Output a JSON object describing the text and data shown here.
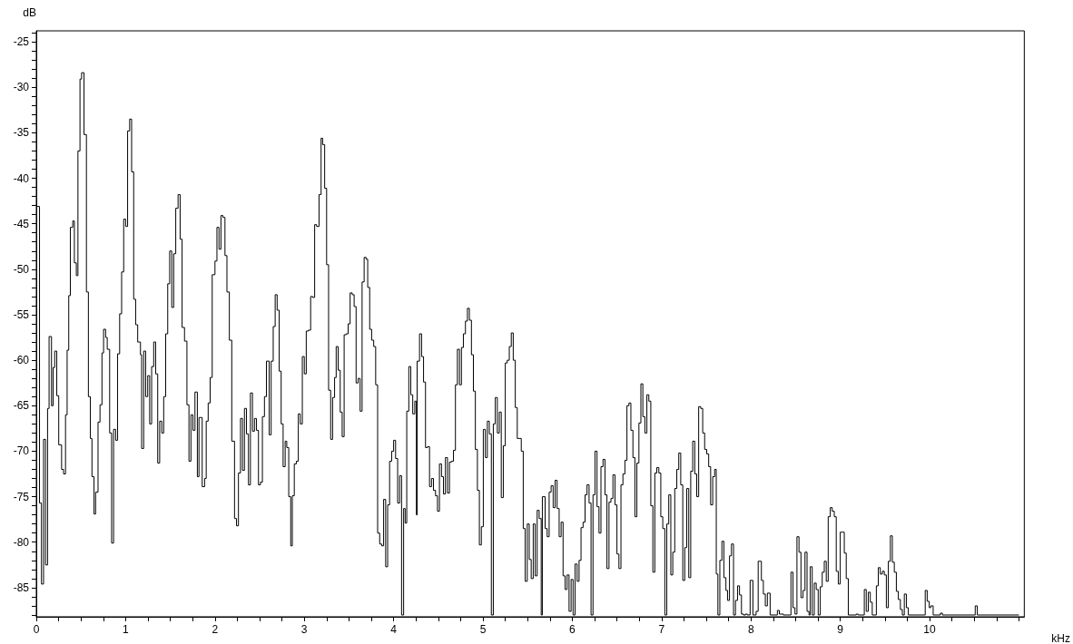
{
  "chart_data": {
    "type": "step",
    "xlabel": "kHz",
    "ylabel": "dB",
    "xlim": [
      0,
      11.06
    ],
    "ylim": [
      -88.2,
      -23.8
    ],
    "xticks": [
      0,
      {
        "value": 0.25,
        "label": null
      },
      {
        "value": 0.5,
        "label": null
      },
      {
        "value": 0.75,
        "label": null
      },
      1,
      {
        "value": 1.25,
        "label": null
      },
      {
        "value": 1.5,
        "label": null
      },
      {
        "value": 1.75,
        "label": null
      },
      2,
      {
        "value": 2.25,
        "label": null
      },
      {
        "value": 2.5,
        "label": null
      },
      {
        "value": 2.75,
        "label": null
      },
      3,
      {
        "value": 3.25,
        "label": null
      },
      {
        "value": 3.5,
        "label": null
      },
      {
        "value": 3.75,
        "label": null
      },
      4,
      {
        "value": 4.25,
        "label": null
      },
      {
        "value": 4.5,
        "label": null
      },
      {
        "value": 4.75,
        "label": null
      },
      5,
      {
        "value": 5.25,
        "label": null
      },
      {
        "value": 5.5,
        "label": null
      },
      {
        "value": 5.75,
        "label": null
      },
      6,
      {
        "value": 6.25,
        "label": null
      },
      {
        "value": 6.5,
        "label": null
      },
      {
        "value": 6.75,
        "label": null
      },
      7,
      {
        "value": 7.25,
        "label": null
      },
      {
        "value": 7.5,
        "label": null
      },
      {
        "value": 7.75,
        "label": null
      },
      8,
      {
        "value": 8.25,
        "label": null
      },
      {
        "value": 8.5,
        "label": null
      },
      {
        "value": 8.75,
        "label": null
      },
      9,
      {
        "value": 9.25,
        "label": null
      },
      {
        "value": 9.5,
        "label": null
      },
      {
        "value": 9.75,
        "label": null
      },
      10,
      {
        "value": 10.25,
        "label": null
      },
      {
        "value": 10.5,
        "label": null
      },
      {
        "value": 10.75,
        "label": null
      },
      {
        "value": 11,
        "label": null
      }
    ],
    "yticks": [
      {
        "value": -88,
        "label": null
      },
      {
        "value": -87,
        "label": null
      },
      {
        "value": -86,
        "label": null
      },
      -85,
      {
        "value": -84,
        "label": null
      },
      {
        "value": -83,
        "label": null
      },
      {
        "value": -82,
        "label": null
      },
      {
        "value": -81,
        "label": null
      },
      -80,
      {
        "value": -79,
        "label": null
      },
      {
        "value": -78,
        "label": null
      },
      {
        "value": -77,
        "label": null
      },
      {
        "value": -76,
        "label": null
      },
      -75,
      {
        "value": -74,
        "label": null
      },
      {
        "value": -73,
        "label": null
      },
      {
        "value": -72,
        "label": null
      },
      {
        "value": -71,
        "label": null
      },
      -70,
      {
        "value": -69,
        "label": null
      },
      {
        "value": -68,
        "label": null
      },
      {
        "value": -67,
        "label": null
      },
      {
        "value": -66,
        "label": null
      },
      -65,
      {
        "value": -64,
        "label": null
      },
      {
        "value": -63,
        "label": null
      },
      {
        "value": -62,
        "label": null
      },
      {
        "value": -61,
        "label": null
      },
      -60,
      {
        "value": -59,
        "label": null
      },
      {
        "value": -58,
        "label": null
      },
      {
        "value": -57,
        "label": null
      },
      {
        "value": -56,
        "label": null
      },
      -55,
      {
        "value": -54,
        "label": null
      },
      {
        "value": -53,
        "label": null
      },
      {
        "value": -52,
        "label": null
      },
      {
        "value": -51,
        "label": null
      },
      -50,
      {
        "value": -49,
        "label": null
      },
      {
        "value": -48,
        "label": null
      },
      {
        "value": -47,
        "label": null
      },
      {
        "value": -46,
        "label": null
      },
      -45,
      {
        "value": -44,
        "label": null
      },
      {
        "value": -43,
        "label": null
      },
      {
        "value": -42,
        "label": null
      },
      {
        "value": -41,
        "label": null
      },
      -40,
      {
        "value": -39,
        "label": null
      },
      {
        "value": -38,
        "label": null
      },
      {
        "value": -37,
        "label": null
      },
      {
        "value": -36,
        "label": null
      },
      -35,
      {
        "value": -34,
        "label": null
      },
      {
        "value": -33,
        "label": null
      },
      {
        "value": -32,
        "label": null
      },
      {
        "value": -31,
        "label": null
      },
      -30,
      {
        "value": -29,
        "label": null
      },
      {
        "value": -28,
        "label": null
      },
      {
        "value": -27,
        "label": null
      },
      {
        "value": -26,
        "label": null
      },
      -25,
      {
        "value": -24,
        "label": null
      }
    ],
    "series": [
      {
        "color": "#000000",
        "x": [
          0,
          0.036,
          0.058,
          0.081,
          0.103,
          0.126,
          0.143,
          0.17,
          0.188,
          0.206,
          0.229,
          0.251,
          0.283,
          0.305,
          0.327,
          0.345,
          0.363,
          0.381,
          0.408,
          0.426,
          0.448,
          0.466,
          0.489,
          0.507,
          0.534,
          0.561,
          0.583,
          0.605,
          0.623,
          0.646,
          0.664,
          0.691,
          0.713,
          0.735,
          0.753,
          0.776,
          0.794,
          0.821,
          0.843,
          0.865,
          0.888,
          0.91,
          0.933,
          0.955,
          0.978,
          1.0,
          1.022,
          1.045,
          1.067,
          1.09,
          1.112,
          1.135,
          1.166,
          1.179,
          1.202,
          1.224,
          1.247,
          1.269,
          1.291,
          1.314,
          1.336,
          1.359,
          1.381,
          1.404,
          1.426,
          1.448,
          1.471,
          1.493,
          1.516,
          1.538,
          1.561,
          1.587,
          1.61,
          1.632,
          1.659,
          1.686,
          1.709,
          1.731,
          1.753,
          1.776,
          1.803,
          1.821,
          1.857,
          1.884,
          1.902,
          1.924,
          1.946,
          1.969,
          2.0,
          2.022,
          2.045,
          2.067,
          2.089,
          2.112,
          2.134,
          2.161,
          2.188,
          2.219,
          2.241,
          2.263,
          2.286,
          2.308,
          2.33,
          2.353,
          2.375,
          2.397,
          2.42,
          2.442,
          2.464,
          2.487,
          2.509,
          2.531,
          2.554,
          2.576,
          2.607,
          2.629,
          2.652,
          2.674,
          2.696,
          2.719,
          2.741,
          2.763,
          2.786,
          2.804,
          2.826,
          2.848,
          2.866,
          2.888,
          2.911,
          2.933,
          2.955,
          2.978,
          3.0,
          3.022,
          3.045,
          3.071,
          3.094,
          3.116,
          3.138,
          3.165,
          3.188,
          3.205,
          3.228,
          3.25,
          3.272,
          3.295,
          3.317,
          3.339,
          3.357,
          3.379,
          3.402,
          3.424,
          3.446,
          3.469,
          3.491,
          3.513,
          3.536,
          3.558,
          3.58,
          3.603,
          3.625,
          3.647,
          3.67,
          3.692,
          3.71,
          3.732,
          3.754,
          3.777,
          3.799,
          3.821,
          3.844,
          3.866,
          3.888,
          3.911,
          3.933,
          3.955,
          3.978,
          4.0,
          4.022,
          4.045,
          4.067,
          4.089,
          4.112,
          4.129,
          4.147,
          4.17,
          4.192,
          4.214,
          4.237,
          4.255,
          4.263,
          4.29,
          4.313,
          4.335,
          4.357,
          4.379,
          4.402,
          4.424,
          4.446,
          4.469,
          4.491,
          4.513,
          4.536,
          4.558,
          4.58,
          4.603,
          4.625,
          4.647,
          4.67,
          4.692,
          4.714,
          4.737,
          4.759,
          4.781,
          4.804,
          4.826,
          4.848,
          4.871,
          4.893,
          4.915,
          4.938,
          4.96,
          4.982,
          5.004,
          5.027,
          5.049,
          5.071,
          5.094,
          5.116,
          5.138,
          5.161,
          5.183,
          5.205,
          5.228,
          5.25,
          5.272,
          5.295,
          5.317,
          5.339,
          5.362,
          5.384,
          5.406,
          5.429,
          5.451,
          5.473,
          5.496,
          5.518,
          5.54,
          5.563,
          5.585,
          5.607,
          5.629,
          5.652,
          5.665,
          5.696,
          5.719,
          5.741,
          5.763,
          5.786,
          5.808,
          5.83,
          5.853,
          5.875,
          5.897,
          5.92,
          5.942,
          5.964,
          5.987,
          6.009,
          6.031,
          6.054,
          6.076,
          6.098,
          6.121,
          6.143,
          6.165,
          6.188,
          6.21,
          6.232,
          6.254,
          6.277,
          6.299,
          6.321,
          6.344,
          6.366,
          6.388,
          6.411,
          6.433,
          6.455,
          6.478,
          6.5,
          6.522,
          6.545,
          6.567,
          6.589,
          6.612,
          6.634,
          6.656,
          6.679,
          6.701,
          6.723,
          6.746,
          6.768,
          6.79,
          6.813,
          6.835,
          6.857,
          6.879,
          6.902,
          6.924,
          6.946,
          6.969,
          6.991,
          7.013,
          7.036,
          7.058,
          7.08,
          7.103,
          7.125,
          7.147,
          7.17,
          7.192,
          7.214,
          7.237,
          7.259,
          7.281,
          7.304,
          7.326,
          7.348,
          7.371,
          7.393,
          7.415,
          7.438,
          7.46,
          7.482,
          7.505,
          7.527,
          7.549,
          7.572,
          7.594,
          7.612,
          7.63,
          7.652,
          7.675,
          7.697,
          7.72,
          7.738,
          7.76,
          7.782,
          7.805,
          7.827,
          7.85,
          7.872,
          7.894,
          7.917,
          7.939,
          7.96,
          7.991,
          8.022,
          8.058,
          8.081,
          8.117,
          8.139,
          8.161,
          8.184,
          8.215,
          8.296,
          8.318,
          8.363,
          8.448,
          8.471,
          8.493,
          8.515,
          8.538,
          8.56,
          8.583,
          8.605,
          8.628,
          8.65,
          8.664,
          8.686,
          8.709,
          8.731,
          8.753,
          8.776,
          8.798,
          8.821,
          8.843,
          8.865,
          8.888,
          8.91,
          8.933,
          8.955,
          8.978,
          9.0,
          9.022,
          9.045,
          9.067,
          9.09,
          9.179,
          9.2,
          9.269,
          9.291,
          9.314,
          9.336,
          9.358,
          9.404,
          9.426,
          9.448,
          9.471,
          9.493,
          9.516,
          9.538,
          9.561,
          9.583,
          9.605,
          9.628,
          9.65,
          9.673,
          9.695,
          9.717,
          9.74,
          9.762,
          9.951,
          9.973,
          9.996,
          10.013,
          10.04,
          10.121,
          10.143,
          10.511,
          10.534,
          11.0
        ],
        "values": [
          -43.1,
          -75.7,
          -84.6,
          -68.7,
          -82.5,
          -65.3,
          -57.4,
          -65,
          -60.8,
          -59,
          -63.9,
          -69.3,
          -72,
          -72.5,
          -66,
          -58.9,
          -52.9,
          -45.4,
          -44.7,
          -49.3,
          -50.7,
          -37,
          -29.1,
          -28.4,
          -35.2,
          -52.5,
          -64,
          -68.6,
          -72.8,
          -76.9,
          -74.5,
          -66.8,
          -64.9,
          -59.2,
          -56.6,
          -57.5,
          -58.8,
          -68,
          -80.1,
          -67.6,
          -68.8,
          -59.3,
          -54.9,
          -50.3,
          -44.5,
          -45.3,
          -34.8,
          -33.5,
          -39.3,
          -53.3,
          -56.1,
          -58,
          -59.4,
          -69.7,
          -59,
          -64,
          -61.7,
          -67,
          -60.7,
          -58,
          -61.5,
          -71.3,
          -66.7,
          -68,
          -64,
          -57.1,
          -51.6,
          -48,
          -54.2,
          -48.3,
          -43.3,
          -41.8,
          -46.7,
          -56.4,
          -57.9,
          -64.9,
          -71.1,
          -66,
          -67.7,
          -63.5,
          -72.8,
          -66.3,
          -73.9,
          -73,
          -66.7,
          -64.7,
          -61.9,
          -50.6,
          -49.1,
          -45.4,
          -47.8,
          -44.1,
          -44.3,
          -48.5,
          -52.5,
          -57.8,
          -68.9,
          -77.4,
          -78.2,
          -72.4,
          -66.4,
          -72.1,
          -65.3,
          -68.1,
          -73.7,
          -63.6,
          -67.8,
          -66.4,
          -67.7,
          -73.7,
          -73.4,
          -66.2,
          -64,
          -60.1,
          -68.2,
          -60.1,
          -56.3,
          -52.8,
          -54.5,
          -61.2,
          -67,
          -71.7,
          -68.9,
          -69.6,
          -75,
          -80.4,
          -74.9,
          -71.4,
          -71.1,
          -65.9,
          -67,
          -59.6,
          -61.5,
          -56.8,
          -56.7,
          -53,
          -53.1,
          -45.1,
          -45.3,
          -41.8,
          -35.6,
          -36.3,
          -41.1,
          -49.5,
          -63.3,
          -68.7,
          -64.1,
          -61.9,
          -58.5,
          -61.1,
          -65.7,
          -68.4,
          -57.2,
          -57.1,
          -56,
          -52.6,
          -52.8,
          -54.1,
          -62.5,
          -62,
          -65.6,
          -51.4,
          -48.7,
          -48.9,
          -52,
          -56.6,
          -57.8,
          -58.5,
          -62.7,
          -79,
          -80.2,
          -80.4,
          -75.3,
          -82.7,
          -75.9,
          -71.1,
          -70,
          -68.8,
          -70.8,
          -75.7,
          -72.7,
          -88,
          -76.3,
          -77.9,
          -65.6,
          -60.7,
          -63.8,
          -65.9,
          -64.5,
          -77,
          -60.1,
          -57.1,
          -59.6,
          -62.4,
          -69.6,
          -69.5,
          -73.9,
          -73,
          -74.3,
          -74.9,
          -76.6,
          -71.4,
          -72.8,
          -74.7,
          -70.7,
          -74.6,
          -71.2,
          -71.1,
          -69.9,
          -62.7,
          -58.8,
          -62.7,
          -58.6,
          -57.1,
          -55.7,
          -54.3,
          -55.6,
          -59.4,
          -63.4,
          -69.8,
          -74.3,
          -80.3,
          -78.3,
          -67.6,
          -70.7,
          -66.7,
          -68.1,
          -88,
          -67,
          -64.1,
          -68,
          -65.7,
          -75.1,
          -69.4,
          -60.3,
          -60,
          -58.5,
          -57,
          -60,
          -65.2,
          -68.6,
          -68.6,
          -70,
          -78.5,
          -84.3,
          -78,
          -81.9,
          -84,
          -78,
          -83.7,
          -76.5,
          -77.4,
          -88,
          -75,
          -78.5,
          -79.4,
          -74.5,
          -73.8,
          -76.2,
          -73.2,
          -76.3,
          -79.4,
          -77.8,
          -83.7,
          -85.2,
          -83.6,
          -87.6,
          -84.1,
          -88,
          -82.4,
          -84.3,
          -82,
          -78.4,
          -77.8,
          -74.8,
          -73.7,
          -75.7,
          -88,
          -74.8,
          -70,
          -76.1,
          -79,
          -71.7,
          -70.9,
          -74.8,
          -82.9,
          -75.6,
          -75.2,
          -72.6,
          -75.9,
          -81.3,
          -82.9,
          -73.7,
          -72.5,
          -71,
          -65,
          -64.7,
          -67.7,
          -70.7,
          -77.2,
          -71.3,
          -66.9,
          -62.6,
          -66.2,
          -68,
          -63.8,
          -64.5,
          -76,
          -83.3,
          -72.4,
          -71.8,
          -72.4,
          -77.2,
          -78.5,
          -88,
          -78,
          -74.8,
          -83.6,
          -81.1,
          -74.1,
          -72,
          -70.2,
          -73.7,
          -84.2,
          -80.6,
          -74.1,
          -83.9,
          -72.2,
          -68.9,
          -72.5,
          -75,
          -65.1,
          -65.3,
          -68,
          -69.8,
          -70.3,
          -71.7,
          -75.9,
          -72.8,
          -72,
          -83.5,
          -88,
          -82,
          -79.9,
          -83.9,
          -85.3,
          -86.4,
          -81.5,
          -80.2,
          -88,
          -86.4,
          -84.8,
          -85.8,
          -87.9,
          -88,
          -87.9,
          -88,
          -84.2,
          -88,
          -87.6,
          -82.1,
          -84.2,
          -85.7,
          -87,
          -85.6,
          -88,
          -87.5,
          -87.9,
          -88,
          -83.3,
          -87.2,
          -87.9,
          -79.4,
          -81.1,
          -86.1,
          -85.3,
          -81.1,
          -87.6,
          -88,
          -82.7,
          -88,
          -84.5,
          -85.2,
          -88,
          -84.9,
          -83.3,
          -82.1,
          -84.3,
          -77.2,
          -76.2,
          -76.6,
          -77.2,
          -83.2,
          -84.6,
          -78.9,
          -78.9,
          -81.2,
          -84,
          -88,
          -87.9,
          -88,
          -85.2,
          -87.6,
          -85.5,
          -86.6,
          -88,
          -84.8,
          -82.8,
          -83.5,
          -83.2,
          -83.6,
          -87.2,
          -82.1,
          -79.3,
          -82.2,
          -83.3,
          -85.4,
          -86.3,
          -87.4,
          -88,
          -85.7,
          -87.2,
          -88,
          -85.3,
          -86.5,
          -87.2,
          -87,
          -88,
          -87.8,
          -88,
          -87,
          -88,
          -88
        ]
      }
    ]
  }
}
